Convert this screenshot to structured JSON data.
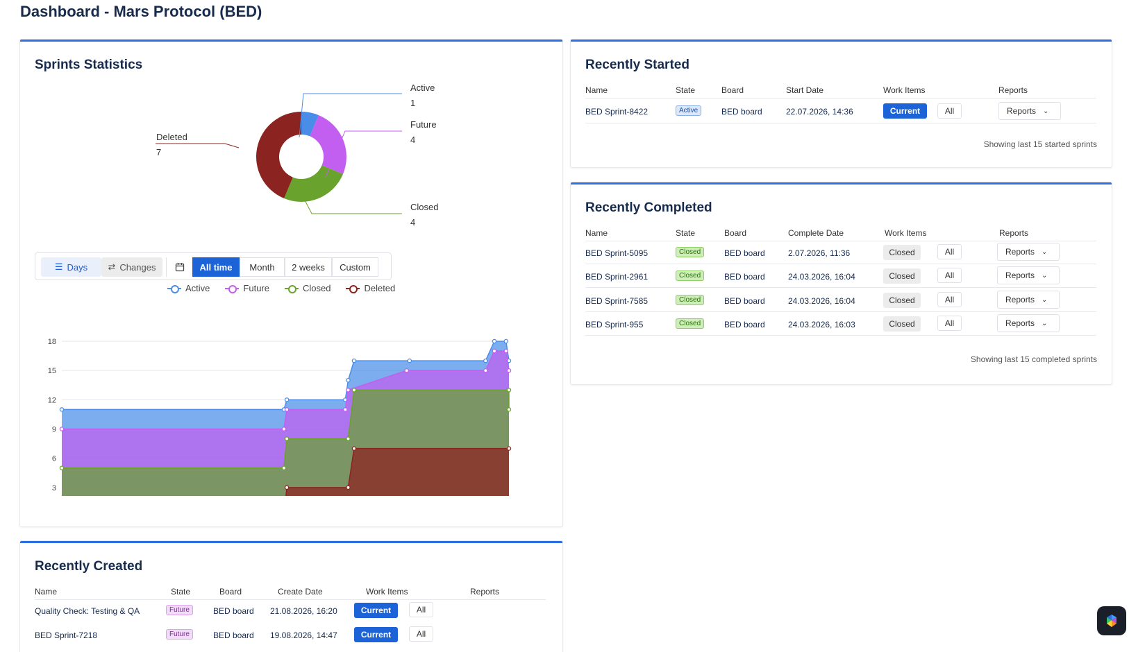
{
  "page": {
    "title": "Dashboard - Mars Protocol (BED)"
  },
  "sprint_stats": {
    "title": "Sprints Statistics",
    "donut": [
      {
        "label": "Active",
        "count": "1",
        "value": 1,
        "color": "#4a8de8"
      },
      {
        "label": "Future",
        "count": "4",
        "value": 4,
        "color": "#c25ef0"
      },
      {
        "label": "Closed",
        "count": "4",
        "value": 4,
        "color": "#6aa22e"
      },
      {
        "label": "Deleted",
        "count": "7",
        "value": 7,
        "color": "#8b2420"
      }
    ],
    "toolbar": {
      "days": "Days",
      "changes": "Changes",
      "ranges": [
        "All time",
        "Month",
        "2 weeks",
        "Custom"
      ],
      "selected_range": "All time"
    },
    "legend": [
      "Active",
      "Future",
      "Closed",
      "Deleted"
    ]
  },
  "chart_data": {
    "type": "area",
    "stacked": true,
    "x_ticks": [
      "2026-04-01",
      "2026-05-01",
      "2026-06-01",
      "2026-07-01",
      "2026-08-01"
    ],
    "y_ticks": [
      0,
      3,
      6,
      9,
      12,
      15,
      18
    ],
    "ylim": [
      0,
      18
    ],
    "xlim": [
      "2026-03-24",
      "2026-08-24"
    ],
    "series": [
      {
        "name": "Deleted",
        "color": "#8b2420",
        "points": [
          [
            "2026-03-24",
            0
          ],
          [
            "2026-06-08",
            0
          ],
          [
            "2026-06-09",
            3
          ],
          [
            "2026-06-30",
            3
          ],
          [
            "2026-07-02",
            7
          ],
          [
            "2026-08-24",
            7
          ]
        ]
      },
      {
        "name": "Closed",
        "color": "#6aa22e",
        "points": [
          [
            "2026-03-24",
            5
          ],
          [
            "2026-06-08",
            5
          ],
          [
            "2026-06-09",
            8
          ],
          [
            "2026-06-30",
            8
          ],
          [
            "2026-07-02",
            13
          ],
          [
            "2026-08-24",
            13
          ],
          [
            "2026-08-24",
            11
          ]
        ]
      },
      {
        "name": "Future",
        "color": "#c25ef0",
        "points": [
          [
            "2026-03-24",
            9
          ],
          [
            "2026-06-08",
            9
          ],
          [
            "2026-06-09",
            11
          ],
          [
            "2026-06-29",
            11
          ],
          [
            "2026-06-30",
            13
          ],
          [
            "2026-07-20",
            15
          ],
          [
            "2026-08-16",
            15
          ],
          [
            "2026-08-19",
            17
          ],
          [
            "2026-08-23",
            17
          ],
          [
            "2026-08-24",
            15
          ]
        ]
      },
      {
        "name": "Active",
        "color": "#4a8de8",
        "points": [
          [
            "2026-03-24",
            11
          ],
          [
            "2026-06-08",
            11
          ],
          [
            "2026-06-09",
            12
          ],
          [
            "2026-06-29",
            12
          ],
          [
            "2026-06-30",
            14
          ],
          [
            "2026-07-02",
            16
          ],
          [
            "2026-07-21",
            16
          ],
          [
            "2026-08-16",
            16
          ],
          [
            "2026-08-19",
            18
          ],
          [
            "2026-08-23",
            18
          ],
          [
            "2026-08-24",
            16
          ]
        ]
      }
    ]
  },
  "recently_started": {
    "title": "Recently Started",
    "headers": [
      "Name",
      "State",
      "Board",
      "Start Date",
      "Work Items",
      "Reports"
    ],
    "rows": [
      {
        "name": "BED Sprint-8422",
        "state": "Active",
        "board": "BED board",
        "date": "22.07.2026, 14:36",
        "work": "Current",
        "all": "All",
        "reports": "Reports"
      }
    ],
    "footnote": "Showing last 15 started sprints"
  },
  "recently_completed": {
    "title": "Recently Completed",
    "headers": [
      "Name",
      "State",
      "Board",
      "Complete Date",
      "Work Items",
      "Reports"
    ],
    "rows": [
      {
        "name": "BED Sprint-5095",
        "state": "Closed",
        "board": "BED board",
        "date": "2.07.2026, 11:36",
        "work": "Closed",
        "all": "All",
        "reports": "Reports"
      },
      {
        "name": "BED Sprint-2961",
        "state": "Closed",
        "board": "BED board",
        "date": "24.03.2026, 16:04",
        "work": "Closed",
        "all": "All",
        "reports": "Reports"
      },
      {
        "name": "BED Sprint-7585",
        "state": "Closed",
        "board": "BED board",
        "date": "24.03.2026, 16:04",
        "work": "Closed",
        "all": "All",
        "reports": "Reports"
      },
      {
        "name": "BED Sprint-955",
        "state": "Closed",
        "board": "BED board",
        "date": "24.03.2026, 16:03",
        "work": "Closed",
        "all": "All",
        "reports": "Reports"
      }
    ],
    "footnote": "Showing last 15 completed sprints"
  },
  "recently_created": {
    "title": "Recently Created",
    "headers": [
      "Name",
      "State",
      "Board",
      "Create Date",
      "Work Items",
      "Reports"
    ],
    "rows": [
      {
        "name": "Quality Check: Testing & QA",
        "state": "Future",
        "board": "BED board",
        "date": "21.08.2026, 16:20",
        "work": "Current",
        "all": "All"
      },
      {
        "name": "BED Sprint-7218",
        "state": "Future",
        "board": "BED board",
        "date": "19.08.2026, 14:47",
        "work": "Current",
        "all": "All"
      }
    ]
  },
  "icons": {
    "days": "list-icon",
    "changes": "swap-icon",
    "calendar": "calendar-icon",
    "chevron": "chevron-down-icon",
    "fab": "app-launcher-icon"
  }
}
